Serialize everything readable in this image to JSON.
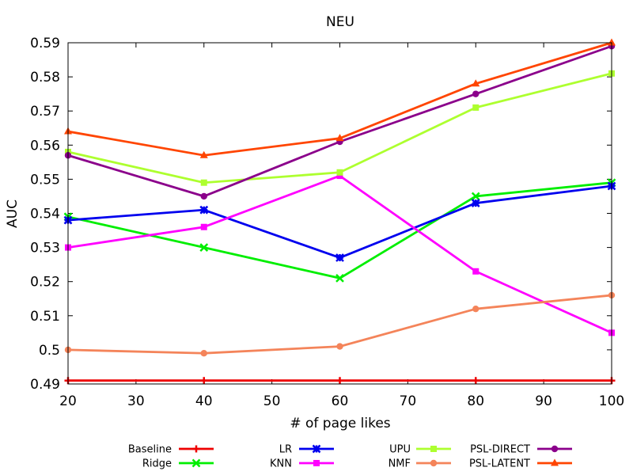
{
  "chart_data": {
    "type": "line",
    "title": "NEU",
    "xlabel": "# of page likes",
    "ylabel": "AUC",
    "xlim": [
      20,
      100
    ],
    "ylim": [
      0.49,
      0.59
    ],
    "x": [
      20,
      40,
      60,
      80,
      100
    ],
    "x_ticks": [
      20,
      30,
      40,
      50,
      60,
      70,
      80,
      90,
      100
    ],
    "x_tick_labels": [
      "20",
      "30",
      "40",
      "50",
      "60",
      "70",
      "80",
      "90",
      "100"
    ],
    "y_ticks": [
      0.49,
      0.5,
      0.51,
      0.52,
      0.53,
      0.54,
      0.55,
      0.56,
      0.57,
      0.58,
      0.59
    ],
    "y_tick_labels": [
      "0.49",
      "0.5",
      "0.51",
      "0.52",
      "0.53",
      "0.54",
      "0.55",
      "0.56",
      "0.57",
      "0.58",
      "0.59"
    ],
    "grid": false,
    "legend_position": "bottom",
    "series": [
      {
        "name": "Baseline",
        "color": "#ee0000",
        "marker": "plus",
        "values": [
          0.491,
          0.491,
          0.491,
          0.491,
          0.491
        ]
      },
      {
        "name": "Ridge",
        "color": "#00ee00",
        "marker": "cross",
        "values": [
          0.539,
          0.53,
          0.521,
          0.545,
          0.549
        ]
      },
      {
        "name": "LR",
        "color": "#0000ee",
        "marker": "star",
        "values": [
          0.538,
          0.541,
          0.527,
          0.543,
          0.548
        ]
      },
      {
        "name": "KNN",
        "color": "#ff00ff",
        "marker": "square",
        "values": [
          0.53,
          0.536,
          0.551,
          0.523,
          0.505
        ]
      },
      {
        "name": "UPU",
        "color": "#adff2f",
        "marker": "square",
        "values": [
          0.558,
          0.549,
          0.552,
          0.571,
          0.581
        ]
      },
      {
        "name": "NMF",
        "color": "#f4845a",
        "marker": "circle",
        "values": [
          0.5,
          0.499,
          0.501,
          0.512,
          0.516
        ]
      },
      {
        "name": "PSL-DIRECT",
        "color": "#8b008b",
        "marker": "circle",
        "values": [
          0.557,
          0.545,
          0.561,
          0.575,
          0.589
        ]
      },
      {
        "name": "PSL-LATENT",
        "color": "#ff4500",
        "marker": "triangle",
        "values": [
          0.564,
          0.557,
          0.562,
          0.578,
          0.59
        ]
      }
    ]
  }
}
